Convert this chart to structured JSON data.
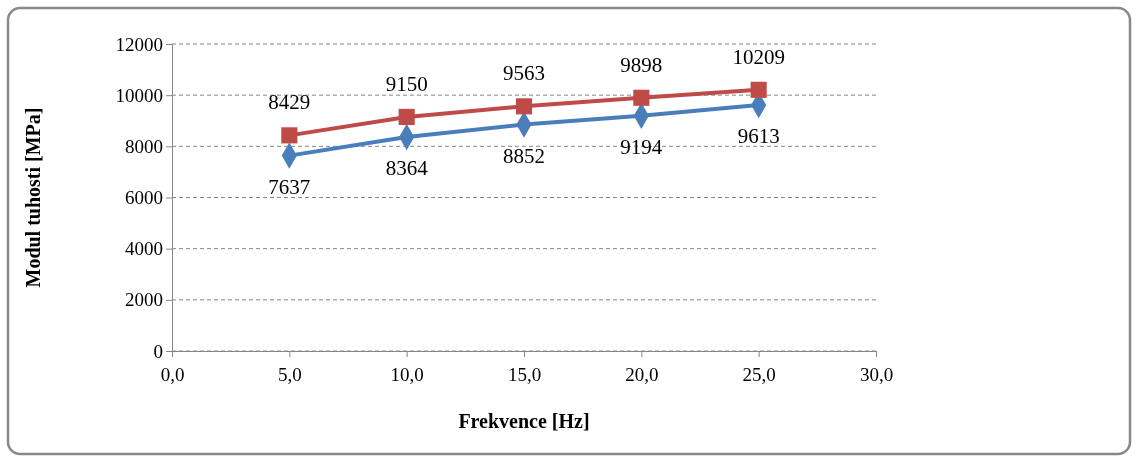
{
  "chart_data": {
    "type": "line",
    "xlabel": "Frekvence [Hz]",
    "ylabel": "Modul tuhosti [MPa]",
    "x": [
      5,
      10,
      15,
      20,
      25
    ],
    "series": [
      {
        "color": "#4a7ebb",
        "marker": "diamond",
        "values": [
          7637,
          8364,
          8852,
          9194,
          9613
        ]
      },
      {
        "color": "#be4b48",
        "marker": "square",
        "values": [
          8429,
          9150,
          9563,
          9898,
          10209
        ]
      }
    ],
    "xlim": [
      0,
      30
    ],
    "xticks": [
      {
        "value": 0,
        "label": "0,0"
      },
      {
        "value": 5,
        "label": "5,0"
      },
      {
        "value": 10,
        "label": "10,0"
      },
      {
        "value": 15,
        "label": "15,0"
      },
      {
        "value": 20,
        "label": "20,0"
      },
      {
        "value": 25,
        "label": "25,0"
      },
      {
        "value": 30,
        "label": "30,0"
      }
    ],
    "ylim": [
      0,
      12000
    ],
    "yticks": [
      0,
      2000,
      4000,
      6000,
      8000,
      10000,
      12000
    ],
    "grid": "y",
    "data_labels": true,
    "line_style": "solid"
  }
}
